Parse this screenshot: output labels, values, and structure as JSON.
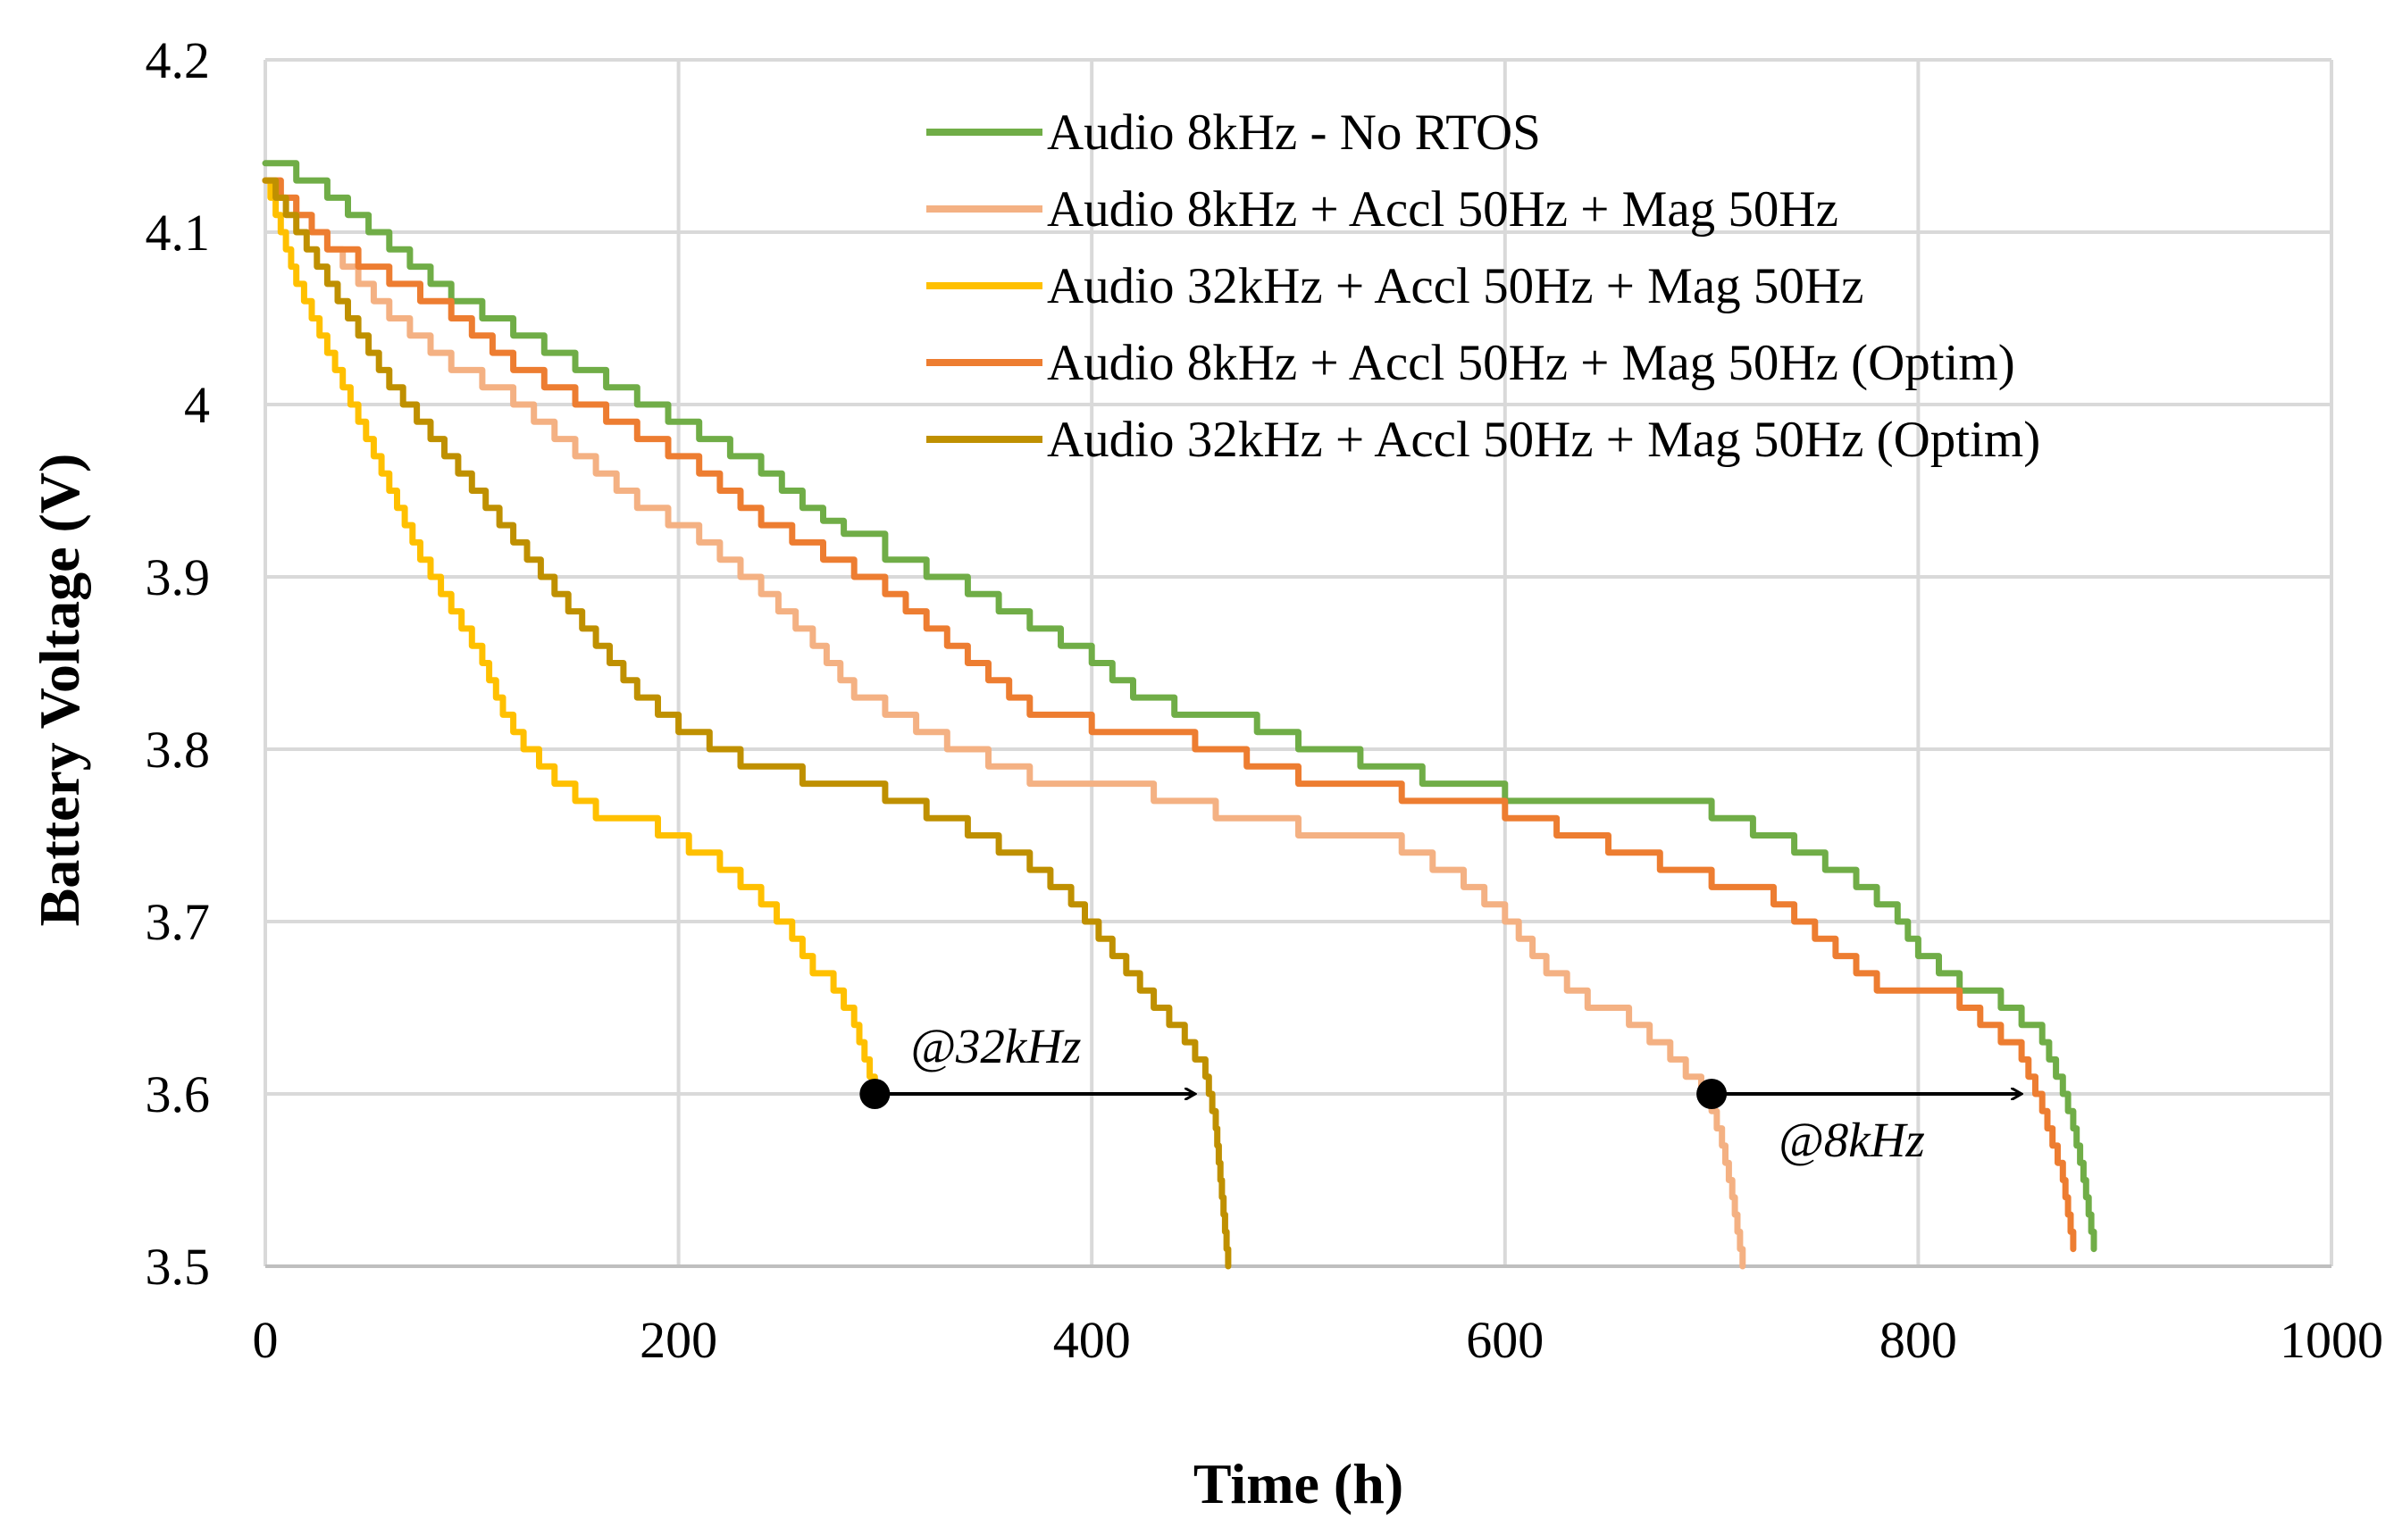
{
  "chart_data": {
    "type": "line",
    "title": "",
    "xlabel": "Time (h)",
    "ylabel": "Battery Voltage (V)",
    "xlim": [
      0,
      1000
    ],
    "ylim": [
      3.5,
      4.2
    ],
    "xticks": [
      0,
      200,
      400,
      600,
      800,
      1000
    ],
    "yticks": [
      3.5,
      3.6,
      3.7,
      3.8,
      3.9,
      4.0,
      4.1,
      4.2
    ],
    "xtick_labels": [
      "0",
      "200",
      "400",
      "600",
      "800",
      "1000"
    ],
    "ytick_labels": [
      "3.5",
      "3.6",
      "3.7",
      "3.8",
      "3.9",
      "4",
      "4.1",
      "4.2"
    ],
    "grid": true,
    "legend_position": "top-right",
    "series": [
      {
        "name": "Audio 8kHz - No RTOS",
        "color": "#70ad47",
        "x": [
          0,
          30,
          60,
          90,
          120,
          150,
          180,
          210,
          240,
          260,
          280,
          300,
          340,
          370,
          400,
          420,
          440,
          480,
          500,
          530,
          560,
          600,
          660,
          700,
          740,
          770,
          790,
          800,
          820,
          840,
          860,
          870,
          875,
          880,
          885
        ],
        "y": [
          4.14,
          4.12,
          4.09,
          4.06,
          4.04,
          4.02,
          4.0,
          3.98,
          3.96,
          3.94,
          3.925,
          3.91,
          3.89,
          3.87,
          3.85,
          3.83,
          3.82,
          3.81,
          3.8,
          3.79,
          3.78,
          3.77,
          3.77,
          3.76,
          3.74,
          3.72,
          3.7,
          3.68,
          3.66,
          3.65,
          3.63,
          3.6,
          3.58,
          3.55,
          3.51
        ]
      },
      {
        "name": "Audio 8kHz + Accl 50Hz + Mag 50Hz",
        "color": "#f4b183",
        "x": [
          0,
          30,
          60,
          90,
          120,
          150,
          180,
          210,
          240,
          265,
          285,
          300,
          330,
          370,
          400,
          430,
          460,
          500,
          550,
          580,
          600,
          620,
          640,
          660,
          680,
          695,
          700,
          705,
          710,
          715
        ],
        "y": [
          4.13,
          4.09,
          4.05,
          4.02,
          4.0,
          3.97,
          3.94,
          3.92,
          3.89,
          3.86,
          3.83,
          3.82,
          3.8,
          3.78,
          3.78,
          3.77,
          3.76,
          3.75,
          3.74,
          3.72,
          3.7,
          3.67,
          3.65,
          3.64,
          3.62,
          3.6,
          3.59,
          3.57,
          3.54,
          3.5
        ]
      },
      {
        "name": "Audio 32kHz + Accl 50Hz + Mag 50Hz",
        "color": "#ffc000",
        "x": [
          0,
          15,
          30,
          45,
          60,
          75,
          90,
          105,
          115,
          125,
          140,
          160,
          190,
          220,
          240,
          255,
          265,
          275,
          285,
          290,
          295
        ],
        "y": [
          4.13,
          4.07,
          4.03,
          3.99,
          3.95,
          3.91,
          3.88,
          3.85,
          3.82,
          3.8,
          3.78,
          3.76,
          3.75,
          3.73,
          3.71,
          3.69,
          3.67,
          3.66,
          3.64,
          3.62,
          3.6
        ]
      },
      {
        "name": "Audio 8kHz + Accl 50Hz + Mag 50Hz (Optim)",
        "color": "#ed7d31",
        "x": [
          0,
          30,
          60,
          90,
          120,
          150,
          180,
          210,
          240,
          270,
          300,
          320,
          340,
          370,
          400,
          450,
          500,
          550,
          600,
          650,
          700,
          730,
          750,
          770,
          780,
          800,
          820,
          840,
          850,
          860,
          870,
          875
        ],
        "y": [
          4.13,
          4.09,
          4.07,
          4.05,
          4.02,
          4.0,
          3.98,
          3.96,
          3.93,
          3.91,
          3.89,
          3.87,
          3.85,
          3.82,
          3.81,
          3.8,
          3.78,
          3.77,
          3.76,
          3.74,
          3.72,
          3.71,
          3.69,
          3.67,
          3.66,
          3.66,
          3.65,
          3.63,
          3.62,
          3.59,
          3.55,
          3.51
        ]
      },
      {
        "name": "Audio 32kHz + Accl 50Hz + Mag 50Hz (Optim)",
        "color": "#bf9000",
        "x": [
          0,
          20,
          40,
          60,
          80,
          100,
          120,
          140,
          160,
          180,
          200,
          230,
          260,
          300,
          340,
          370,
          390,
          410,
          430,
          445,
          455,
          460,
          463,
          466
        ],
        "y": [
          4.13,
          4.09,
          4.05,
          4.01,
          3.98,
          3.95,
          3.92,
          3.89,
          3.86,
          3.83,
          3.81,
          3.79,
          3.78,
          3.77,
          3.75,
          3.73,
          3.71,
          3.68,
          3.65,
          3.63,
          3.61,
          3.58,
          3.54,
          3.5
        ]
      }
    ],
    "annotations": [
      {
        "label": "@32kHz",
        "from": [
          295,
          3.6
        ],
        "to": [
          450,
          3.6
        ]
      },
      {
        "label": "@8kHz",
        "from": [
          700,
          3.6
        ],
        "to": [
          850,
          3.6
        ]
      }
    ]
  }
}
